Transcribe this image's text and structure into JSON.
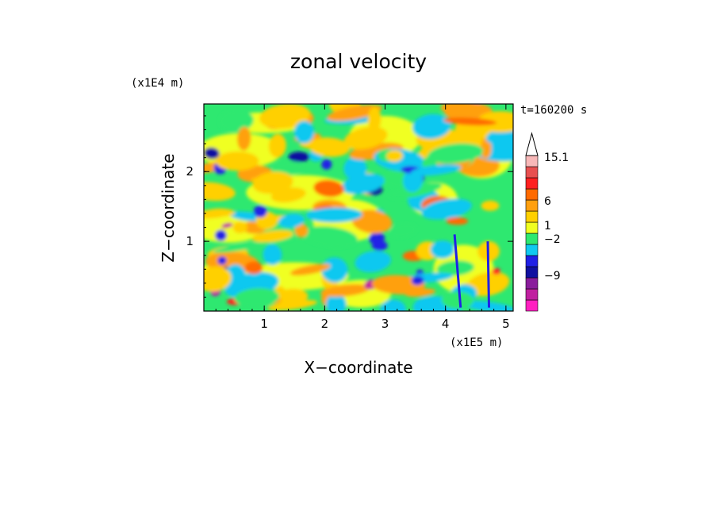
{
  "chart_data": {
    "type": "heatmap",
    "title": "zonal velocity",
    "xlabel": "X−coordinate",
    "ylabel": "Z−coordinate",
    "x_unit": "(x1E5 m)",
    "y_unit": "(x1E4 m)",
    "time_label": "t=160200 s",
    "xlim": [
      0,
      5.12
    ],
    "ylim": [
      0,
      2.97
    ],
    "x_ticks": [
      1,
      2,
      3,
      4,
      5
    ],
    "y_ticks": [
      1,
      2
    ],
    "colorbar": {
      "labels": [
        "15.1",
        "6",
        "1",
        "−2",
        "−9"
      ],
      "levels": [
        {
          "color": "#ff20c0"
        },
        {
          "color": "#c020a0"
        },
        {
          "color": "#8a1d9c"
        },
        {
          "color": "#1010a0"
        },
        {
          "color": "#2020e6"
        },
        {
          "color": "#10c8f0"
        },
        {
          "color": "#2ee870"
        },
        {
          "color": "#f0ff20"
        },
        {
          "color": "#ffd000"
        },
        {
          "color": "#ffa010"
        },
        {
          "color": "#ff6a00"
        },
        {
          "color": "#ff2020"
        },
        {
          "color": "#e85050"
        },
        {
          "color": "#f8b8b8"
        }
      ]
    },
    "field_description_colors": {
      "background": "#2ee870",
      "positive": [
        "#f0ff20",
        "#ffd000",
        "#ffa010",
        "#ff6a00",
        "#ff2020"
      ],
      "negative": [
        "#10c8f0",
        "#2020e6",
        "#1010a0",
        "#c020a0"
      ]
    }
  }
}
